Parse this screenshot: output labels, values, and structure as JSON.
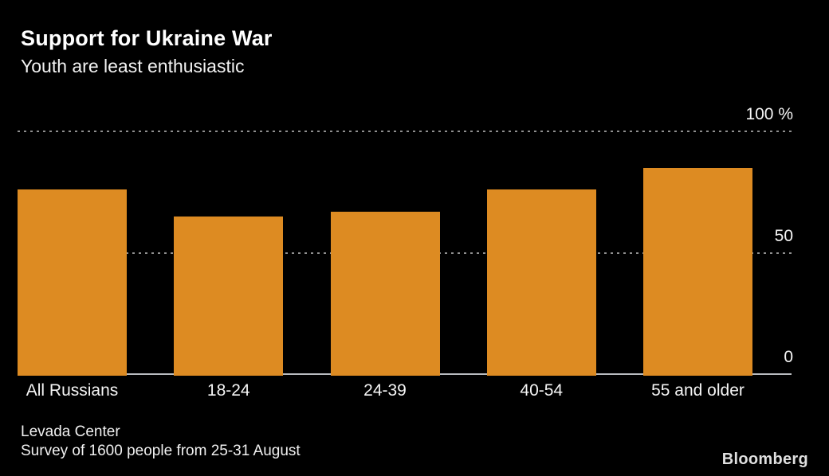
{
  "header": {
    "title": "Support for Ukraine War",
    "subtitle": "Youth are least enthusiastic"
  },
  "footer": {
    "source_line1": "Levada Center",
    "source_line2": "Survey of 1600 people from 25-31 August",
    "brand": "Bloomberg"
  },
  "colors": {
    "background": "#000000",
    "bar": "#DD8B22",
    "text": "#FFFFFF",
    "gridline": "#8F8F8F",
    "axis_line": "#B9BCC0",
    "brand_text": "#DFDFDF"
  },
  "chart_data": {
    "type": "bar",
    "title": "Support for Ukraine War",
    "subtitle": "Youth are least enthusiastic",
    "categories": [
      "All Russians",
      "18-24",
      "24-39",
      "40-54",
      "55 and older"
    ],
    "values": [
      76,
      65,
      67,
      76,
      85
    ],
    "unit": "%",
    "xlabel": "",
    "ylabel": "%",
    "ylim": [
      0,
      100
    ],
    "yticks": [
      {
        "value": 0,
        "label": "0"
      },
      {
        "value": 50,
        "label": "50"
      },
      {
        "value": 100,
        "label": "100 %"
      }
    ],
    "gridlines": [
      50,
      100
    ],
    "grid_style": "dotted",
    "legend_position": "none",
    "source": "Levada Center, survey of 1600 people from 25-31 August"
  }
}
